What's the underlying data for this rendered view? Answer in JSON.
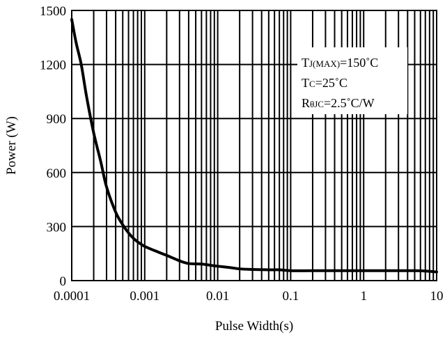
{
  "chart_data": {
    "type": "line",
    "title": "",
    "xlabel": "Pulse Width(s)",
    "ylabel": "Power (W)",
    "x_scale": "log",
    "xlim": [
      0.0001,
      10
    ],
    "ylim": [
      0,
      1500
    ],
    "grid": true,
    "x_ticks": [
      0.0001,
      0.001,
      0.01,
      0.1,
      1,
      10
    ],
    "x_tick_labels": [
      "0.0001",
      "0.001",
      "0.01",
      "0.1",
      "1",
      "10"
    ],
    "y_ticks": [
      0,
      300,
      600,
      900,
      1200,
      1500
    ],
    "y_tick_labels": [
      "0",
      "300",
      "600",
      "900",
      "1200",
      "1500"
    ],
    "annotation": {
      "line1": {
        "main": "T",
        "sub": "J(MAX)",
        "rest": "=150˚C"
      },
      "line2": {
        "main": "T",
        "sub": "C",
        "rest": "=25˚C"
      },
      "line3": {
        "main": "R",
        "sub": "θJC",
        "rest": "=2.5˚C/W"
      }
    },
    "series": [
      {
        "color": "#000000",
        "x": [
          0.0001,
          0.000115,
          0.000135,
          0.00016,
          0.0002,
          0.00025,
          0.0003,
          0.0004,
          0.0005,
          0.0006,
          0.0007,
          0.0008,
          0.001,
          0.0015,
          0.002,
          0.003,
          0.004,
          0.006,
          0.008,
          0.01,
          0.015,
          0.02,
          0.03,
          0.05,
          0.07,
          0.1,
          0.2,
          0.5,
          1,
          2,
          5,
          7,
          10
        ],
        "y": [
          1450,
          1320,
          1200,
          1020,
          820,
          660,
          520,
          380,
          310,
          265,
          235,
          215,
          190,
          160,
          140,
          110,
          95,
          92,
          85,
          80,
          72,
          65,
          62,
          60,
          60,
          55,
          55,
          55,
          55,
          55,
          55,
          53,
          48
        ]
      }
    ]
  }
}
